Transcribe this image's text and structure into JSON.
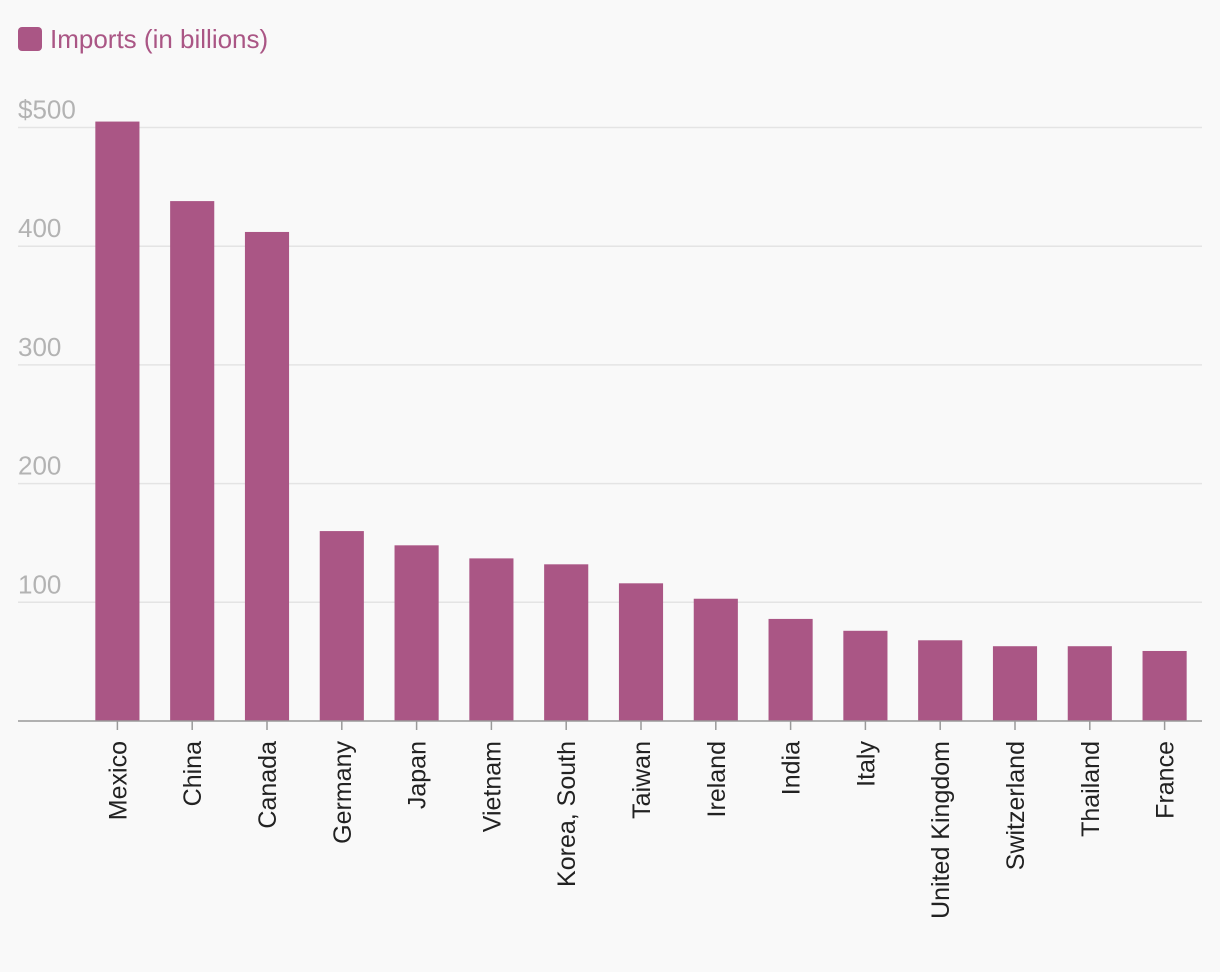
{
  "chart_data": {
    "type": "bar",
    "title": "",
    "xlabel": "",
    "ylabel": "",
    "legend": {
      "position": "top-left",
      "entries": [
        "Imports (in billions)"
      ]
    },
    "series": [
      {
        "name": "Imports (in billions)",
        "color": "#aa5685",
        "values": [
          505,
          438,
          412,
          160,
          148,
          137,
          132,
          116,
          103,
          86,
          76,
          68,
          63,
          63,
          59
        ]
      }
    ],
    "categories": [
      "Mexico",
      "China",
      "Canada",
      "Germany",
      "Japan",
      "Vietnam",
      "Korea, South",
      "Taiwan",
      "Ireland",
      "India",
      "Italy",
      "United Kingdom",
      "Switzerland",
      "Thailand",
      "France"
    ],
    "ylim": [
      0,
      500
    ],
    "yticks": [
      100,
      200,
      300,
      400,
      500
    ],
    "ytick_labels": [
      "100",
      "200",
      "300",
      "400",
      "$500"
    ],
    "grid": true,
    "colors": {
      "bar": "#aa5685",
      "legend_text": "#aa5685",
      "tick_text": "#b3b3b3",
      "category_text": "#222222",
      "gridline": "#e4e4e4",
      "axis": "#999999",
      "background": "#f9f9f9"
    }
  }
}
